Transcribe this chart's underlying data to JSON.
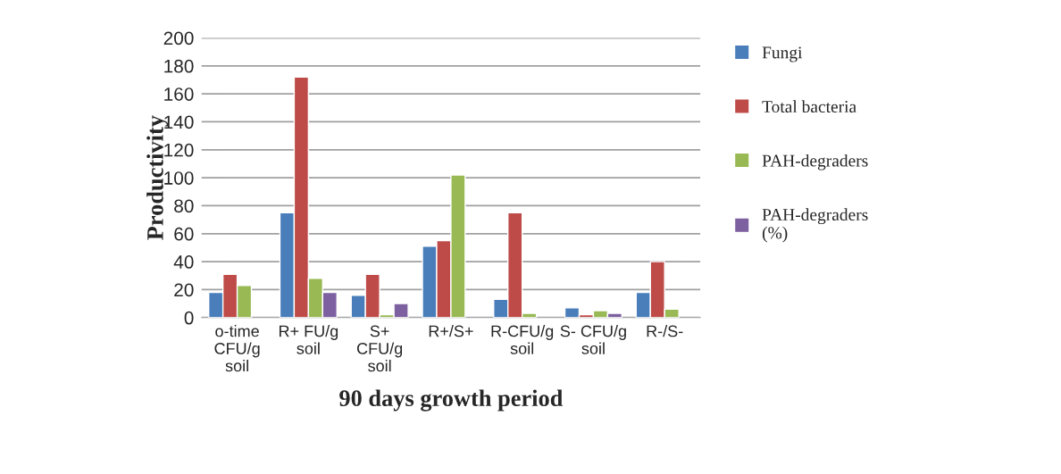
{
  "chart_data": {
    "type": "bar",
    "xlabel": "90 days growth period",
    "ylabel": "Productivity",
    "categories": [
      "o-time\nCFU/g\nsoil",
      "R+ FU/g\nsoil",
      "S+\nCFU/g\nsoil",
      "R+/S+",
      "R-CFU/g\nsoil",
      "S- CFU/g\nsoil",
      "R-/S-"
    ],
    "series": [
      {
        "name": "Fungi",
        "color": "#4a7ebb",
        "values": [
          18,
          75,
          16,
          51,
          13,
          7,
          18
        ]
      },
      {
        "name": "Total bacteria",
        "color": "#be4b48",
        "values": [
          31,
          172,
          31,
          55,
          75,
          2,
          40
        ]
      },
      {
        "name": "PAH-degraders",
        "color": "#98b954",
        "values": [
          23,
          28,
          2,
          102,
          3,
          5,
          6
        ]
      },
      {
        "name": "PAH-degraders\n(%)",
        "color": "#7d60a0",
        "values": [
          null,
          18,
          10,
          null,
          null,
          3,
          null
        ]
      }
    ],
    "ylim": [
      0,
      200
    ],
    "yticks": [
      0,
      20,
      40,
      60,
      80,
      100,
      120,
      140,
      160,
      180,
      200
    ],
    "grid": "y",
    "legend": "right"
  }
}
